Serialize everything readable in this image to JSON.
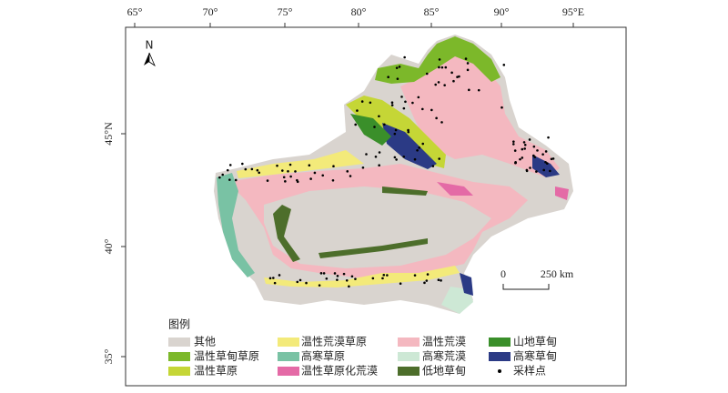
{
  "axes": {
    "top_labels": [
      "65°",
      "70°",
      "75°",
      "80°",
      "85°",
      "90°",
      "95°E"
    ],
    "left_labels": [
      "45°N",
      "40°",
      "35°"
    ]
  },
  "north_label": "N",
  "scale_bar": {
    "start": "0",
    "end": "250 km"
  },
  "legend": {
    "title": "图例",
    "items": [
      {
        "label": "其他",
        "color": "#d9d4cf"
      },
      {
        "label": "温性草甸草原",
        "color": "#7cb82a"
      },
      {
        "label": "温性草原",
        "color": "#c5d636"
      },
      {
        "label": "温性荒漠草原",
        "color": "#f3ea7a"
      },
      {
        "label": "高寒草原",
        "color": "#79c2a4"
      },
      {
        "label": "温性草原化荒漠",
        "color": "#e46aa6"
      },
      {
        "label": "温性荒漠",
        "color": "#f4b8c0"
      },
      {
        "label": "高寒荒漠",
        "color": "#cde8d5"
      },
      {
        "label": "低地草甸",
        "color": "#4d6e2b"
      },
      {
        "label": "山地草甸",
        "color": "#3a8f2a"
      },
      {
        "label": "高寒草甸",
        "color": "#2b3a85"
      },
      {
        "label": "采样点",
        "color": "#000000"
      }
    ]
  }
}
